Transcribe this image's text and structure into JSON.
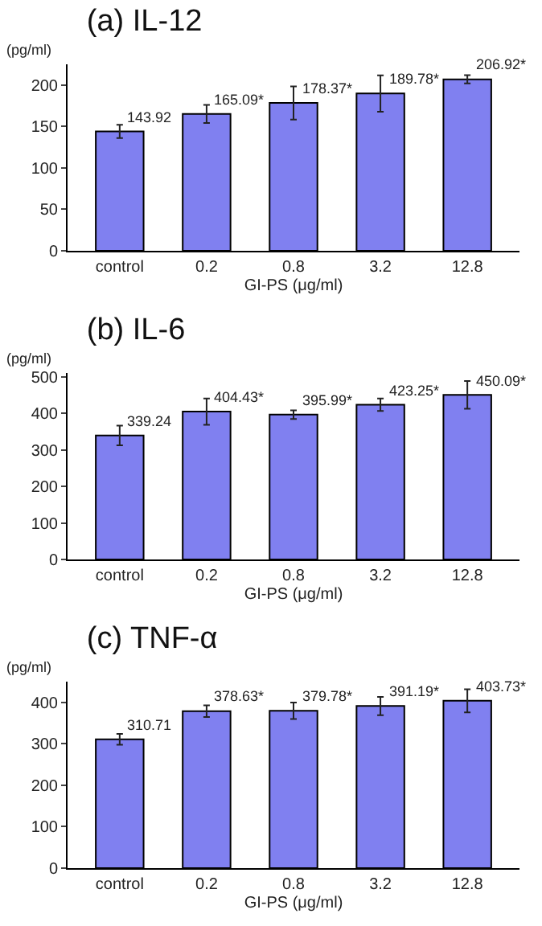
{
  "chart_data": [
    {
      "type": "bar",
      "title": "(a) IL-12",
      "ylabel": "(pg/ml)",
      "xlabel": "GI-PS (μg/ml)",
      "categories": [
        "control",
        "0.2",
        "0.8",
        "3.2",
        "12.8"
      ],
      "values": [
        143.92,
        165.09,
        178.37,
        189.78,
        206.92
      ],
      "value_labels": [
        "143.92",
        "165.09*",
        "178.37*",
        "189.78*",
        "206.92*"
      ],
      "errors": [
        8,
        11,
        20,
        22,
        5
      ],
      "color": "#8080f0",
      "ylim": [
        0,
        225
      ],
      "yticks": [
        0,
        50,
        100,
        150,
        200
      ],
      "grid": false
    },
    {
      "type": "bar",
      "title": "(b) IL-6",
      "ylabel": "(pg/ml)",
      "xlabel": "GI-PS (μg/ml)",
      "categories": [
        "control",
        "0.2",
        "0.8",
        "3.2",
        "12.8"
      ],
      "values": [
        339.24,
        404.43,
        395.99,
        423.25,
        450.09
      ],
      "value_labels": [
        "339.24",
        "404.43*",
        "395.99*",
        "423.25*",
        "450.09*"
      ],
      "errors": [
        27,
        36,
        12,
        17,
        38
      ],
      "color": "#8080f0",
      "ylim": [
        0,
        510
      ],
      "yticks": [
        0,
        100,
        200,
        300,
        400,
        500
      ],
      "grid": false
    },
    {
      "type": "bar",
      "title": "(c) TNF-α",
      "ylabel": "(pg/ml)",
      "xlabel": "GI-PS (μg/ml)",
      "categories": [
        "control",
        "0.2",
        "0.8",
        "3.2",
        "12.8"
      ],
      "values": [
        310.71,
        378.63,
        379.78,
        391.19,
        403.73
      ],
      "value_labels": [
        "310.71",
        "378.63*",
        "379.78*",
        "391.19*",
        "403.73*"
      ],
      "errors": [
        13,
        14,
        20,
        22,
        28
      ],
      "color": "#8080f0",
      "ylim": [
        0,
        450
      ],
      "yticks": [
        0,
        100,
        200,
        300,
        400
      ],
      "grid": false
    }
  ]
}
